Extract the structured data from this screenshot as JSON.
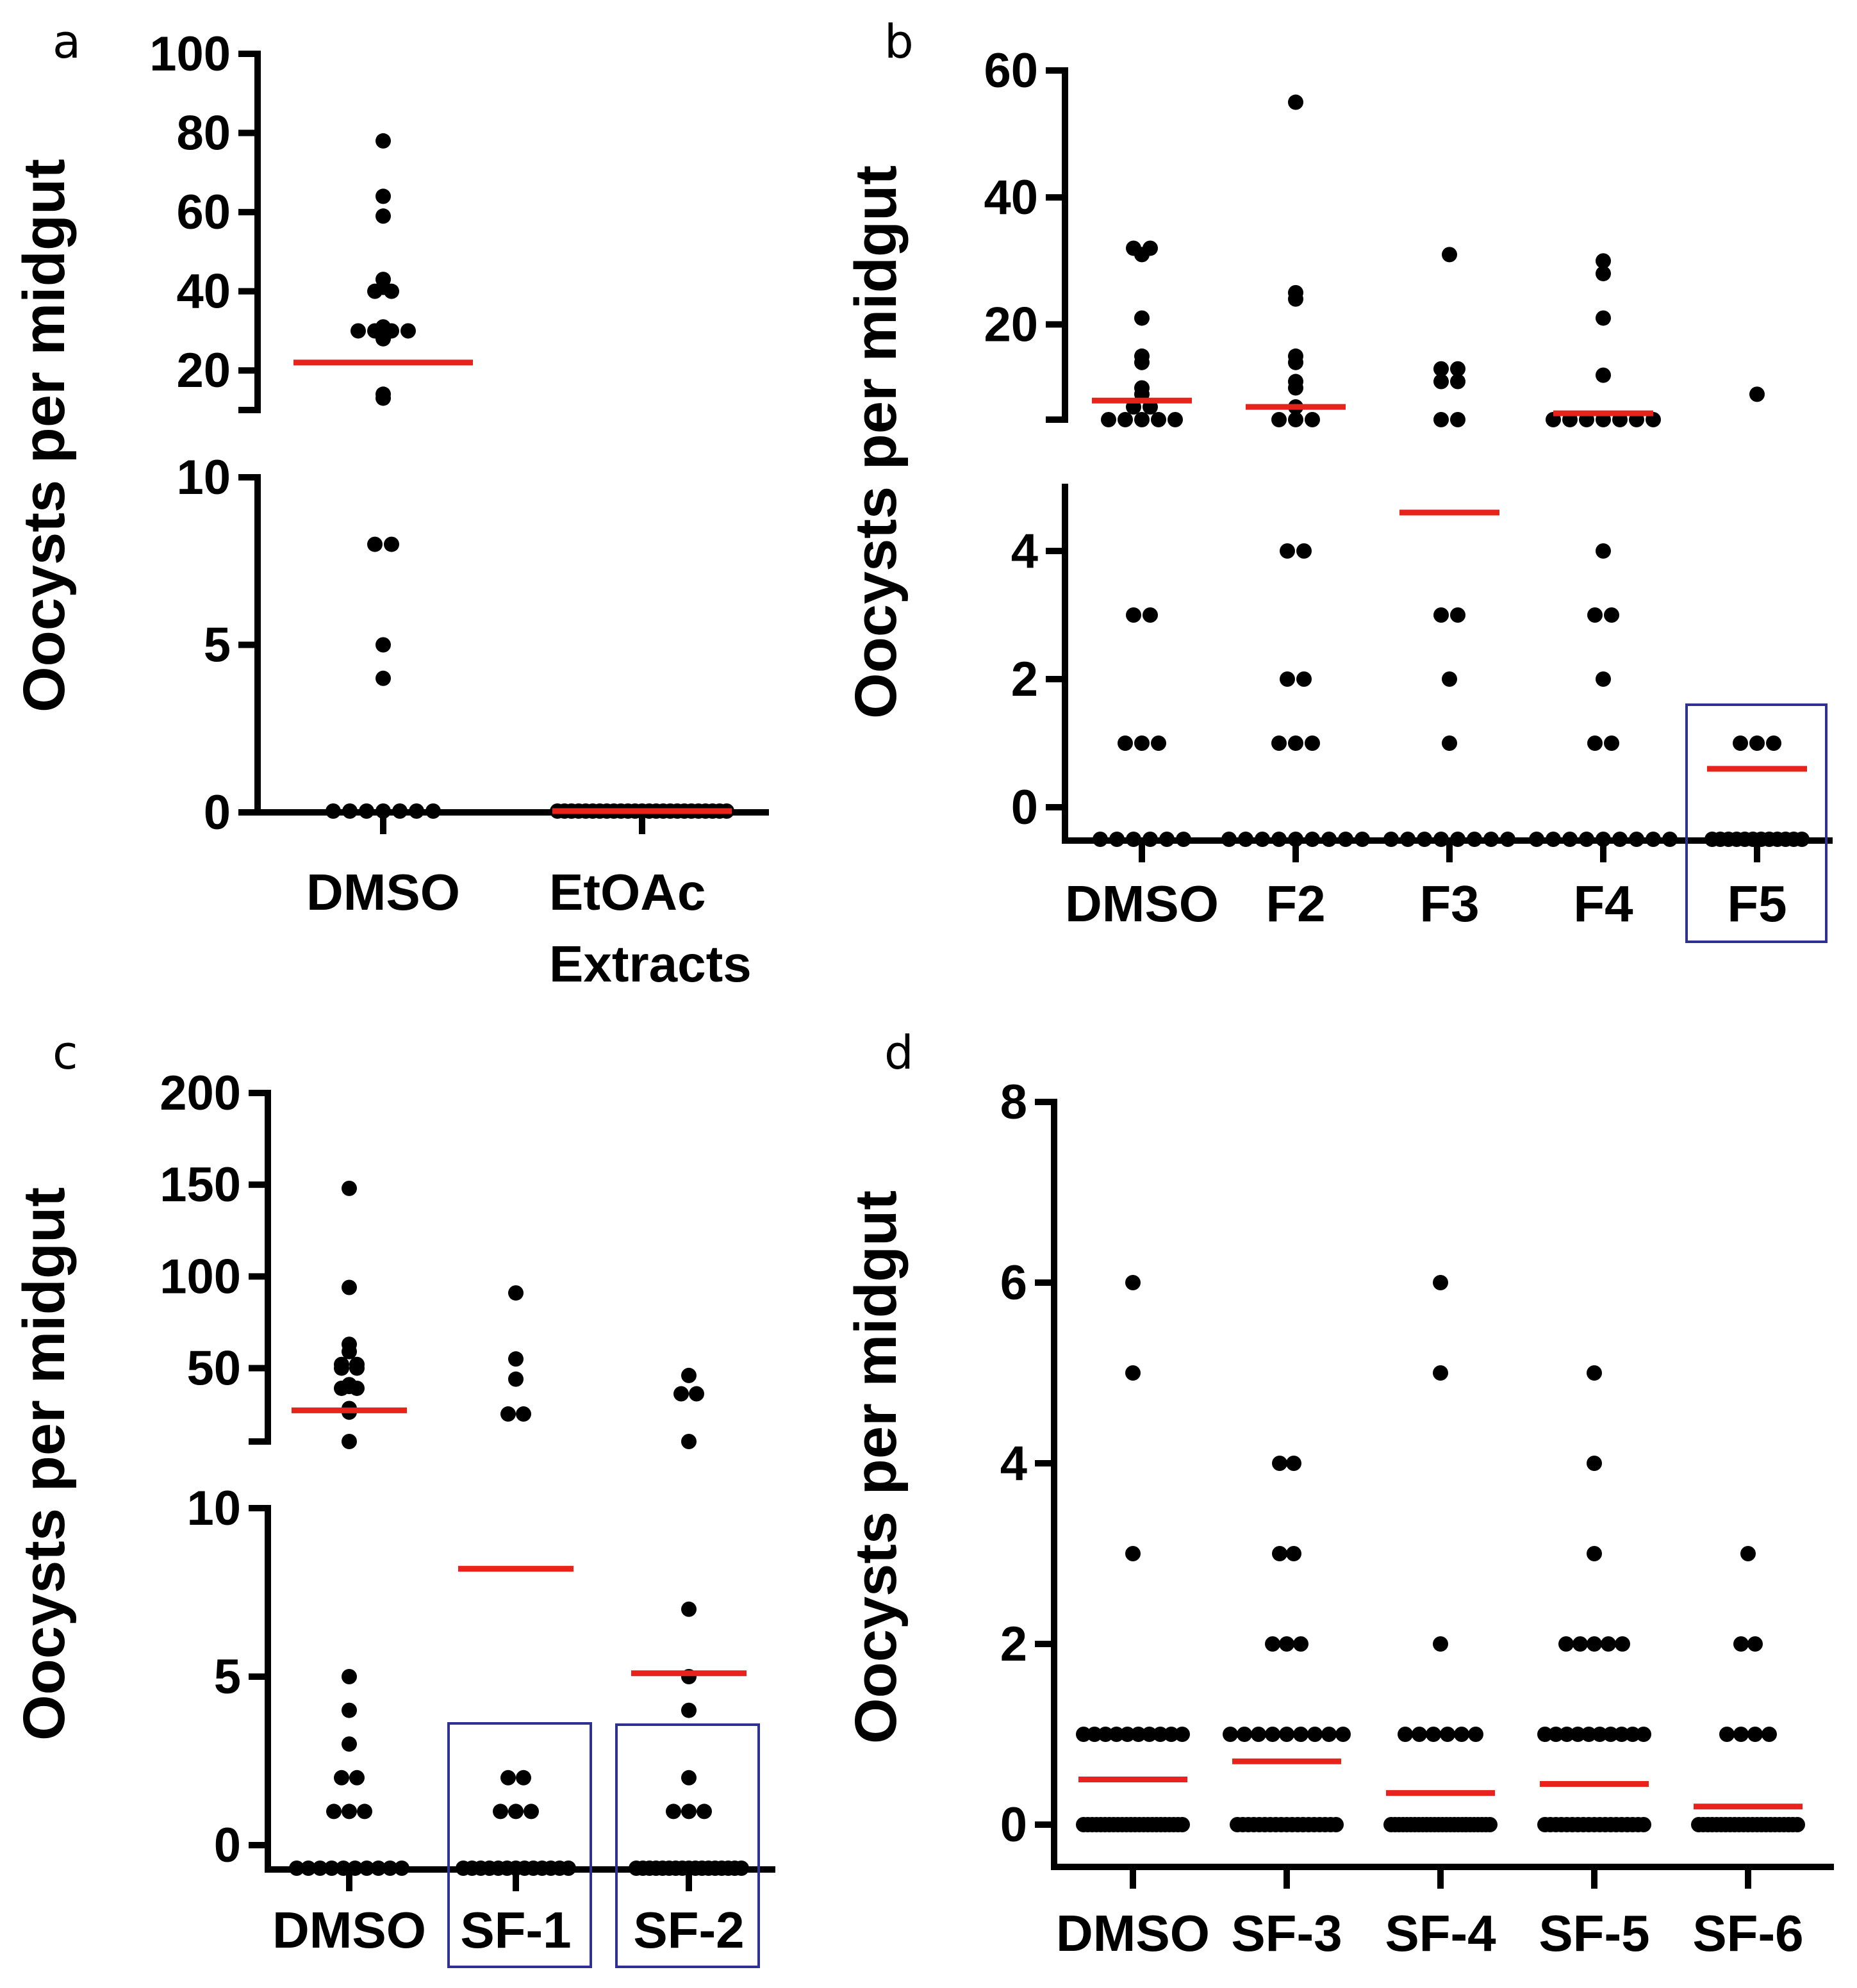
{
  "chart_data": [
    {
      "panel": "a",
      "type": "scatter",
      "ylabel": "Oocysts  per midgut",
      "categories": [
        "DMSO",
        "EtOAc\nExtracts"
      ],
      "segments": [
        {
          "ylim": [
            10,
            100
          ],
          "ticks": [
            100,
            80,
            60,
            40,
            20
          ]
        },
        {
          "ylim": [
            0,
            10
          ],
          "ticks": [
            10,
            5,
            0
          ]
        }
      ],
      "series": [
        {
          "name": "DMSO",
          "values": [
            78,
            64,
            59,
            43,
            41,
            40,
            40,
            31,
            30,
            30,
            30,
            30,
            29,
            28,
            14,
            13,
            8,
            8,
            5,
            4,
            0,
            0,
            0,
            0,
            0,
            0,
            0
          ],
          "median": 22
        },
        {
          "name": "EtOAc Extracts",
          "values": [
            0,
            0,
            0,
            0,
            0,
            0,
            0,
            0,
            0,
            0,
            0,
            0,
            0,
            0,
            0,
            0,
            0,
            0,
            0,
            0,
            0,
            0,
            0,
            0,
            0
          ],
          "median": 0
        }
      ]
    },
    {
      "panel": "b",
      "type": "scatter",
      "ylabel": "Oocysts  per midgut",
      "categories": [
        "DMSO",
        "F2",
        "F3",
        "F4",
        "F5"
      ],
      "highlighted": [
        "F5"
      ],
      "segments": [
        {
          "ylim": [
            5,
            60
          ],
          "ticks": [
            60,
            40,
            20
          ]
        },
        {
          "ylim": [
            0,
            5
          ],
          "ticks": [
            4,
            2,
            0
          ]
        }
      ],
      "series": [
        {
          "name": "DMSO",
          "values": [
            32,
            32,
            31,
            21,
            15,
            14,
            10,
            9,
            7,
            7,
            5,
            5,
            5,
            5,
            5,
            3,
            3,
            1,
            1,
            1,
            0,
            0,
            0,
            0,
            0,
            0
          ],
          "median": 8
        },
        {
          "name": "F2",
          "values": [
            55,
            25,
            24,
            15,
            14,
            11,
            10,
            7,
            5,
            5,
            5,
            4,
            4,
            2,
            2,
            1,
            1,
            1,
            0,
            0,
            0,
            0,
            0,
            0,
            0,
            0,
            0
          ],
          "median": 7
        },
        {
          "name": "F3",
          "values": [
            31,
            13,
            13,
            11,
            11,
            5,
            5,
            3,
            3,
            2,
            1,
            0,
            0,
            0,
            0,
            0,
            0,
            0,
            0
          ],
          "median": 4.6
        },
        {
          "name": "F4",
          "values": [
            30,
            28,
            21,
            12,
            5,
            5,
            5,
            5,
            5,
            5,
            5,
            4,
            3,
            3,
            2,
            1,
            1,
            0,
            0,
            0,
            0,
            0,
            0,
            0,
            0,
            0
          ],
          "median": 6
        },
        {
          "name": "F5",
          "values": [
            9,
            1,
            1,
            1,
            0,
            0,
            0,
            0,
            0,
            0,
            0,
            0,
            0,
            0,
            0,
            0
          ],
          "median": 0.6
        }
      ]
    },
    {
      "panel": "c",
      "type": "scatter",
      "ylabel": "Oocysts  per midgut",
      "categories": [
        "DMSO",
        "SF-1",
        "SF-2"
      ],
      "highlighted": [
        "SF-1",
        "SF-2"
      ],
      "segments": [
        {
          "ylim": [
            10,
            200
          ],
          "ticks": [
            200,
            150,
            100,
            50
          ]
        },
        {
          "ylim": [
            0,
            10
          ],
          "ticks": [
            10,
            5,
            0
          ]
        }
      ],
      "series": [
        {
          "name": "DMSO",
          "values": [
            148,
            94,
            63,
            59,
            52,
            52,
            50,
            50,
            41,
            40,
            39,
            39,
            28,
            26,
            10,
            5,
            4,
            3,
            2,
            2,
            1,
            1,
            1,
            0,
            0,
            0,
            0,
            0,
            0,
            0,
            0,
            0,
            0
          ],
          "median": 27
        },
        {
          "name": "SF-1",
          "values": [
            91,
            55,
            44,
            25,
            25,
            2,
            2,
            1,
            1,
            1,
            0,
            0,
            0,
            0,
            0,
            0,
            0,
            0,
            0,
            0,
            0,
            0,
            0
          ],
          "median": 8.2
        },
        {
          "name": "SF-2",
          "values": [
            46,
            36,
            36,
            10,
            7,
            5,
            4,
            2,
            1,
            1,
            1,
            0,
            0,
            0,
            0,
            0,
            0,
            0,
            0,
            0,
            0,
            0,
            0,
            0,
            0,
            0,
            0,
            0
          ],
          "median": 5.1
        }
      ]
    },
    {
      "panel": "d",
      "type": "scatter",
      "ylabel": "Oocysts  per midgut",
      "categories": [
        "DMSO",
        "SF-3",
        "SF-4",
        "SF-5",
        "SF-6"
      ],
      "ylim": [
        0,
        8
      ],
      "ticks": [
        8,
        6,
        4,
        2,
        0
      ],
      "series": [
        {
          "name": "DMSO",
          "values": [
            6,
            5,
            3,
            1,
            1,
            1,
            1,
            1,
            1,
            1,
            1,
            1,
            1,
            0,
            0,
            0,
            0,
            0,
            0,
            0,
            0,
            0,
            0,
            0,
            0,
            0,
            0,
            0,
            0,
            0,
            0,
            0,
            0,
            0,
            0,
            0,
            0
          ],
          "median": 0.5
        },
        {
          "name": "SF-3",
          "values": [
            4,
            4,
            3,
            3,
            2,
            2,
            2,
            1,
            1,
            1,
            1,
            1,
            1,
            1,
            1,
            1,
            0,
            0,
            0,
            0,
            0,
            0,
            0,
            0,
            0,
            0,
            0,
            0,
            0,
            0,
            0,
            0,
            0,
            0,
            0
          ],
          "median": 0.7
        },
        {
          "name": "SF-4",
          "values": [
            6,
            5,
            2,
            1,
            1,
            1,
            1,
            1,
            1,
            0,
            0,
            0,
            0,
            0,
            0,
            0,
            0,
            0,
            0,
            0,
            0,
            0,
            0,
            0,
            0,
            0,
            0,
            0,
            0,
            0,
            0,
            0,
            0,
            0,
            0
          ],
          "median": 0.35
        },
        {
          "name": "SF-5",
          "values": [
            5,
            4,
            3,
            2,
            2,
            2,
            2,
            2,
            1,
            1,
            1,
            1,
            1,
            1,
            1,
            1,
            1,
            1,
            0,
            0,
            0,
            0,
            0,
            0,
            0,
            0,
            0,
            0,
            0,
            0,
            0,
            0,
            0,
            0,
            0,
            0,
            0
          ],
          "median": 0.45
        },
        {
          "name": "SF-6",
          "values": [
            3,
            2,
            2,
            1,
            1,
            1,
            1,
            0,
            0,
            0,
            0,
            0,
            0,
            0,
            0,
            0,
            0,
            0,
            0,
            0,
            0,
            0,
            0,
            0,
            0,
            0,
            0,
            0,
            0,
            0
          ],
          "median": 0.2
        }
      ]
    }
  ]
}
